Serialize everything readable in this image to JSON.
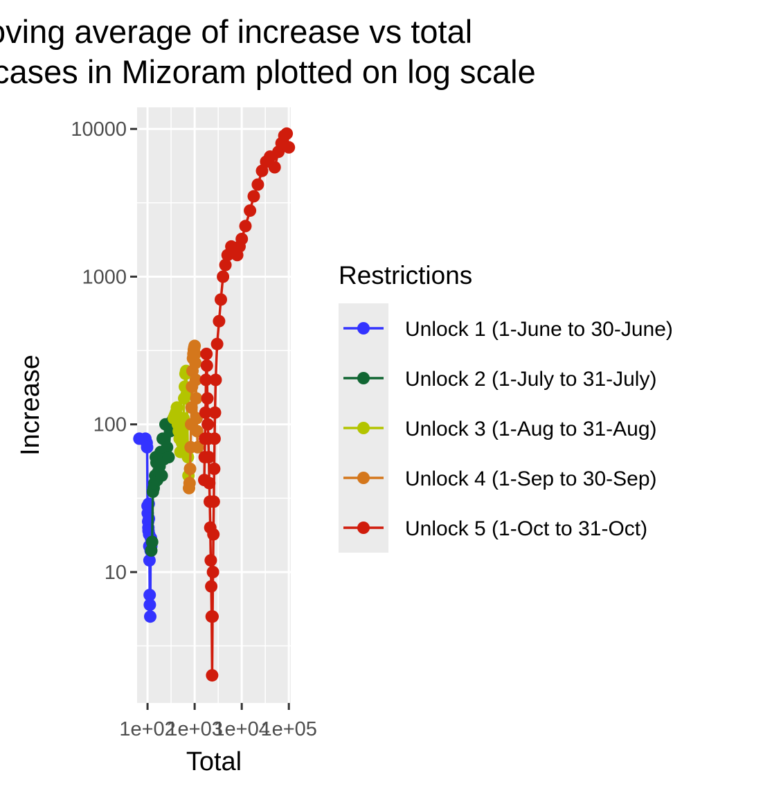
{
  "chart_data": {
    "type": "line",
    "title": [
      "oving average of increase vs total",
      "cases in Mizoram plotted on log scale"
    ],
    "xlabel": "Total",
    "ylabel": "Increase",
    "x_scale": "log10",
    "y_scale": "log10",
    "xlim": [
      60,
      110000
    ],
    "ylim": [
      1.3,
      14000
    ],
    "x_ticks": [
      100,
      1000,
      10000,
      100000
    ],
    "x_tick_labels": [
      "1e+02",
      "1e+03",
      "1e+04",
      "1e+05"
    ],
    "y_ticks": [
      10,
      100,
      1000,
      10000
    ],
    "y_tick_labels": [
      "10",
      "100",
      "1000",
      "10000"
    ],
    "grid": true,
    "legend": {
      "title": "Restrictions",
      "placement": "right"
    },
    "series": [
      {
        "name": "Unlock 1 (1-June to 30-June)",
        "color": "#3333ff",
        "x": [
          67,
          90,
          96,
          98,
          100,
          101,
          103,
          104,
          105,
          106,
          107,
          108,
          109,
          110,
          111,
          112,
          114,
          116,
          118,
          120
        ],
        "y": [
          80,
          80,
          75,
          70,
          28,
          25,
          22,
          20,
          19,
          29,
          23,
          18,
          15,
          12,
          7,
          6,
          5,
          14,
          17,
          15
        ]
      },
      {
        "name": "Unlock 2 (1-July to 31-July)",
        "color": "#116633",
        "x": [
          120,
          125,
          130,
          135,
          140,
          145,
          150,
          155,
          160,
          170,
          180,
          190,
          200,
          210,
          220,
          240,
          260,
          280,
          300,
          330,
          360
        ],
        "y": [
          14,
          16,
          35,
          37,
          40,
          45,
          60,
          55,
          42,
          48,
          52,
          65,
          45,
          80,
          58,
          100,
          70,
          60,
          90,
          105,
          110
        ]
      },
      {
        "name": "Unlock 3 (1-Aug to 31-Aug)",
        "color": "#b3c400",
        "x": [
          360,
          380,
          400,
          420,
          440,
          460,
          480,
          500,
          520,
          540,
          560,
          580,
          600,
          620,
          640,
          660,
          680,
          700,
          720,
          740
        ],
        "y": [
          110,
          115,
          120,
          130,
          100,
          90,
          80,
          65,
          85,
          75,
          95,
          110,
          150,
          180,
          220,
          230,
          160,
          100,
          60,
          45
        ]
      },
      {
        "name": "Unlock 4 (1-Sep to 30-Sep)",
        "color": "#d4771c",
        "x": [
          760,
          780,
          800,
          820,
          840,
          860,
          880,
          900,
          920,
          940,
          960,
          980,
          1000,
          1020,
          1040,
          1060,
          1080,
          1100,
          1130,
          1160
        ],
        "y": [
          37,
          40,
          50,
          70,
          100,
          130,
          180,
          230,
          280,
          300,
          320,
          330,
          340,
          300,
          260,
          200,
          150,
          110,
          90,
          70
        ]
      },
      {
        "name": "Unlock 5 (1-Oct to 31-Oct)",
        "color": "#d01c0c",
        "x": [
          1600,
          1630,
          1660,
          1700,
          1740,
          1780,
          1820,
          1860,
          1900,
          1950,
          2000,
          2050,
          2100,
          2150,
          2200,
          2250,
          2300,
          2350,
          2400,
          2450,
          2500,
          2550,
          2600,
          2650,
          2700,
          2800,
          3000,
          3300,
          3600,
          4000,
          4500,
          5000,
          6000,
          7000,
          8000,
          9000,
          10000,
          12000,
          15000,
          18000,
          22000,
          27000,
          33000,
          40000,
          50000,
          60000,
          70000,
          80000,
          90000,
          100000
        ],
        "y": [
          42,
          60,
          80,
          120,
          200,
          300,
          250,
          150,
          100,
          80,
          60,
          40,
          30,
          20,
          12,
          8,
          5,
          2,
          5,
          10,
          18,
          30,
          50,
          80,
          120,
          200,
          350,
          500,
          700,
          1000,
          1200,
          1400,
          1600,
          1500,
          1400,
          1600,
          1800,
          2200,
          2800,
          3500,
          4200,
          5200,
          6000,
          6500,
          5500,
          7000,
          8000,
          9000,
          9300,
          7500
        ]
      }
    ]
  }
}
